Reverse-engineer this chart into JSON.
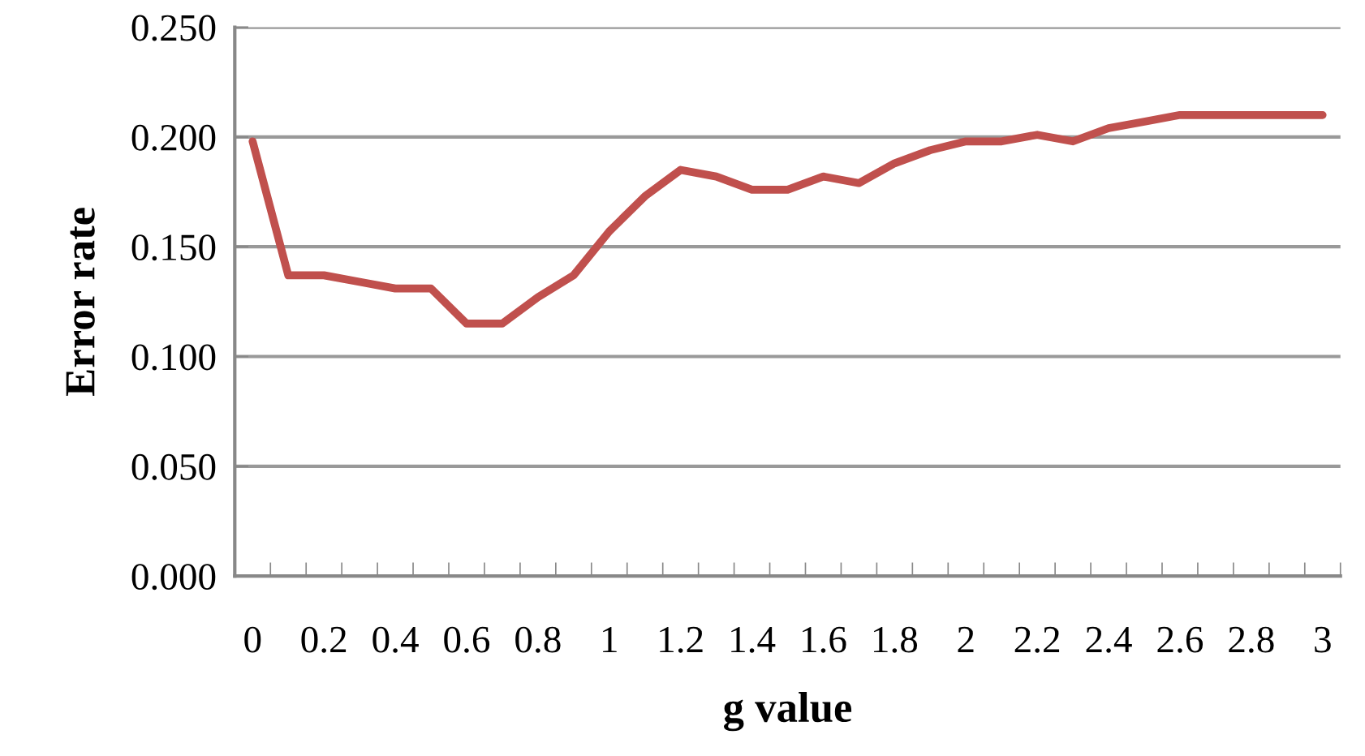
{
  "chart_data": {
    "type": "line",
    "xlabel": "g value",
    "ylabel": "Error rate",
    "categories": [
      "0",
      null,
      "0.2",
      null,
      "0.4",
      null,
      "0.6",
      null,
      "0.8",
      null,
      "1",
      null,
      "1.2",
      null,
      "1.4",
      null,
      "1.6",
      null,
      "1.8",
      null,
      "2",
      null,
      "2.2",
      null,
      "2.4",
      null,
      "2.6",
      null,
      "2.8",
      null,
      "3"
    ],
    "series": [
      {
        "color": "#c0504d",
        "values": [
          0.198,
          0.137,
          0.137,
          0.134,
          0.131,
          0.131,
          0.115,
          0.115,
          0.127,
          0.137,
          0.157,
          0.173,
          0.185,
          0.182,
          0.176,
          0.176,
          0.182,
          0.179,
          0.188,
          0.194,
          0.198,
          0.198,
          0.201,
          0.198,
          0.204,
          0.207,
          0.21,
          0.21,
          0.21,
          0.21,
          0.21
        ]
      }
    ],
    "ylim": [
      0,
      0.25
    ],
    "yticks": [
      {
        "value": 0,
        "label": "0.000"
      },
      {
        "value": 0.05,
        "label": "0.050"
      },
      {
        "value": 0.1,
        "label": "0.100"
      },
      {
        "value": 0.15,
        "label": "0.150"
      },
      {
        "value": 0.2,
        "label": "0.200"
      },
      {
        "value": 0.25,
        "label": "0.250"
      }
    ],
    "grid": "y",
    "marker": "none",
    "line_style": "solid"
  }
}
